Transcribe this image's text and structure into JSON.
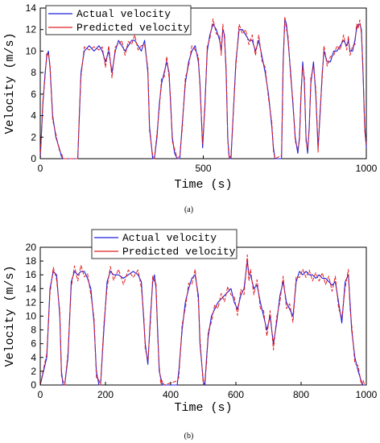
{
  "chart_data": [
    {
      "type": "line",
      "panel_label": "(a)",
      "xlabel": "Time (s)",
      "ylabel": "Velocity (m/s)",
      "xlim": [
        0,
        1000
      ],
      "ylim": [
        0,
        14
      ],
      "xticks": [
        "0",
        "500",
        "1000"
      ],
      "yticks": [
        "0",
        "2",
        "4",
        "6",
        "8",
        "10",
        "12",
        "14"
      ],
      "legend_position": "top-left",
      "series": [
        {
          "name": "Actual velocity",
          "color": "#1f1fe0",
          "x": [
            0,
            8,
            15,
            20,
            25,
            30,
            38,
            48,
            58,
            65,
            70,
            115,
            120,
            125,
            135,
            150,
            165,
            180,
            190,
            200,
            210,
            220,
            230,
            240,
            250,
            260,
            270,
            280,
            290,
            300,
            310,
            320,
            330,
            335,
            345,
            350,
            358,
            365,
            372,
            380,
            388,
            395,
            400,
            405,
            412,
            420,
            428,
            435,
            445,
            455,
            465,
            475,
            485,
            490,
            498,
            505,
            512,
            520,
            530,
            540,
            550,
            555,
            560,
            565,
            570,
            575,
            578,
            580,
            585,
            600,
            610,
            620,
            630,
            640,
            650,
            660,
            670,
            680,
            690,
            700,
            710,
            715,
            720,
            740,
            745,
            750,
            755,
            760,
            768,
            775,
            782,
            790,
            795,
            800,
            805,
            810,
            815,
            820,
            825,
            830,
            838,
            845,
            852,
            858,
            865,
            870,
            880,
            890,
            900,
            910,
            920,
            930,
            940,
            945,
            950,
            958,
            965,
            970,
            975,
            980,
            985,
            990,
            995,
            1000
          ],
          "y": [
            0,
            5,
            8,
            9.5,
            10,
            8.5,
            4,
            2,
            1,
            0.2,
            0,
            0,
            4,
            8,
            10,
            10.5,
            10,
            10.5,
            10,
            9,
            10,
            8,
            10,
            11,
            10.5,
            10,
            10.5,
            11,
            11,
            10.5,
            10,
            11,
            8,
            3,
            0,
            0,
            2,
            5,
            7,
            8,
            9,
            8,
            5,
            2,
            0.5,
            0,
            0,
            3,
            7,
            9,
            10,
            10.5,
            9,
            7,
            1,
            5,
            10,
            11.5,
            12.5,
            12,
            11,
            10,
            12,
            11.5,
            8,
            2,
            0.5,
            0,
            0,
            9,
            12,
            12,
            11.5,
            11,
            11,
            10,
            11,
            9.5,
            8,
            6,
            3,
            1,
            0,
            0,
            9,
            13,
            12.5,
            11,
            8,
            5,
            2,
            0.5,
            2,
            6,
            9,
            7,
            2,
            0.5,
            3,
            7,
            9,
            6,
            1,
            4,
            8,
            10,
            9,
            9,
            10,
            10,
            10.5,
            11,
            10.5,
            11,
            10,
            10,
            11,
            12,
            12.5,
            12.5,
            12,
            8,
            3,
            1
          ]
        },
        {
          "name": "Predicted velocity",
          "color": "#e02020",
          "x": [
            0,
            8,
            15,
            20,
            25,
            30,
            38,
            48,
            58,
            65,
            70,
            115,
            120,
            125,
            135,
            150,
            165,
            180,
            190,
            200,
            210,
            220,
            230,
            240,
            250,
            260,
            270,
            280,
            290,
            300,
            310,
            320,
            330,
            335,
            345,
            350,
            358,
            365,
            372,
            380,
            388,
            395,
            400,
            405,
            412,
            420,
            428,
            435,
            445,
            455,
            465,
            475,
            485,
            490,
            498,
            505,
            512,
            520,
            530,
            540,
            550,
            555,
            560,
            565,
            570,
            575,
            578,
            580,
            585,
            600,
            610,
            620,
            630,
            640,
            650,
            660,
            670,
            680,
            690,
            700,
            710,
            715,
            720,
            740,
            745,
            750,
            755,
            760,
            768,
            775,
            782,
            790,
            795,
            800,
            805,
            810,
            815,
            820,
            825,
            830,
            838,
            845,
            852,
            858,
            865,
            870,
            880,
            890,
            900,
            910,
            920,
            930,
            940,
            945,
            950,
            958,
            965,
            970,
            975,
            980,
            985,
            990,
            995,
            1000
          ],
          "y": [
            0,
            5.3,
            7.7,
            9.8,
            9.7,
            8.8,
            3.6,
            2.3,
            0.8,
            0.5,
            0,
            0,
            4.4,
            7.6,
            10.4,
            10.1,
            10.4,
            10.1,
            10.4,
            8.5,
            10.5,
            7.5,
            10.4,
            10.6,
            11,
            9.6,
            10.9,
            10.6,
            11.5,
            10.1,
            10.5,
            10.6,
            8.4,
            2.6,
            0.3,
            0,
            2.4,
            4.6,
            7.5,
            7.6,
            9.5,
            7.5,
            5.4,
            1.6,
            0.9,
            0,
            0.3,
            2.6,
            7.5,
            8.6,
            10.5,
            10.1,
            9.5,
            6.6,
            1.4,
            4.6,
            10.5,
            11.1,
            13,
            11.6,
            11.5,
            9.6,
            12.5,
            11.1,
            8.5,
            1.6,
            0.9,
            0,
            0.3,
            8.6,
            12.5,
            11.6,
            12,
            10.6,
            11.5,
            9.6,
            11.5,
            9.1,
            8.5,
            5.6,
            3.4,
            0.7,
            0,
            0.3,
            8.6,
            13.2,
            12,
            11.4,
            7.6,
            5.4,
            1.6,
            0.9,
            1.6,
            6.5,
            8.6,
            7.5,
            1.6,
            0.9,
            2.6,
            7.5,
            8.6,
            6.5,
            0.6,
            4.5,
            7.6,
            10.5,
            8.6,
            9.5,
            9.6,
            10.5,
            10.1,
            11.5,
            10.1,
            11.4,
            9.6,
            10.5,
            10.6,
            12.5,
            12.1,
            12.9,
            11.6,
            8.4,
            2.6,
            1.3
          ]
        }
      ]
    },
    {
      "type": "line",
      "panel_label": "(b)",
      "xlabel": "Time (s)",
      "ylabel": "Velocity (m/s)",
      "xlim": [
        0,
        1000
      ],
      "ylim": [
        0,
        20
      ],
      "xticks": [
        "0",
        "200",
        "400",
        "600",
        "800",
        "1000"
      ],
      "yticks": [
        "0",
        "2",
        "4",
        "6",
        "8",
        "10",
        "12",
        "14",
        "16",
        "18",
        "20"
      ],
      "legend_position": "top-center",
      "series": [
        {
          "name": "Actual velocity",
          "color": "#1f1fe0",
          "x": [
            0,
            20,
            30,
            40,
            50,
            60,
            65,
            70,
            75,
            85,
            95,
            105,
            115,
            125,
            135,
            145,
            155,
            165,
            172,
            180,
            185,
            195,
            205,
            215,
            225,
            240,
            255,
            270,
            285,
            300,
            310,
            318,
            322,
            330,
            338,
            345,
            350,
            355,
            360,
            365,
            370,
            375,
            380,
            420,
            425,
            435,
            445,
            455,
            465,
            475,
            485,
            490,
            500,
            505,
            510,
            515,
            525,
            535,
            545,
            555,
            565,
            575,
            585,
            595,
            605,
            615,
            625,
            635,
            640,
            645,
            655,
            665,
            675,
            685,
            695,
            705,
            715,
            725,
            735,
            745,
            755,
            765,
            775,
            785,
            795,
            805,
            815,
            825,
            835,
            845,
            855,
            865,
            875,
            885,
            895,
            905,
            915,
            925,
            935,
            945,
            950,
            955,
            965,
            975,
            985,
            990,
            995
          ],
          "y": [
            0,
            4,
            14,
            16.5,
            16,
            10,
            2,
            0,
            0,
            4,
            15,
            16.5,
            16,
            16.5,
            16.5,
            15.5,
            14,
            9,
            2,
            0,
            0,
            8,
            15,
            16.5,
            16,
            16,
            15.5,
            16,
            16.5,
            16,
            15,
            9,
            6,
            3,
            10,
            15,
            16,
            14,
            8,
            2,
            1,
            0,
            0,
            0,
            2,
            8,
            12,
            14,
            15.5,
            16,
            13,
            6,
            0.5,
            0,
            4,
            7,
            10,
            11,
            12,
            12.5,
            13,
            13.5,
            14,
            12,
            11,
            13,
            14,
            18,
            16,
            16,
            14,
            14.5,
            12,
            10,
            8,
            10,
            6,
            9,
            13,
            15,
            12,
            11,
            10,
            15,
            16.5,
            16,
            16.5,
            16,
            16,
            15.5,
            16,
            15.5,
            15.5,
            15,
            14.5,
            15,
            12,
            9,
            15,
            16,
            12,
            8,
            4,
            2,
            0.5,
            0,
            0
          ]
        },
        {
          "name": "Predicted velocity",
          "color": "#e02020",
          "x": [
            0,
            20,
            30,
            40,
            50,
            60,
            65,
            70,
            75,
            85,
            95,
            105,
            115,
            125,
            135,
            145,
            155,
            165,
            172,
            180,
            185,
            195,
            205,
            215,
            225,
            240,
            255,
            270,
            285,
            300,
            310,
            318,
            322,
            330,
            338,
            345,
            350,
            355,
            360,
            365,
            370,
            375,
            380,
            420,
            425,
            435,
            445,
            455,
            465,
            475,
            485,
            490,
            500,
            505,
            510,
            515,
            525,
            535,
            545,
            555,
            565,
            575,
            585,
            595,
            605,
            615,
            625,
            635,
            640,
            645,
            655,
            665,
            675,
            685,
            695,
            705,
            715,
            725,
            735,
            745,
            755,
            765,
            775,
            785,
            795,
            805,
            815,
            825,
            835,
            845,
            855,
            865,
            875,
            885,
            895,
            905,
            915,
            925,
            935,
            945,
            950,
            955,
            965,
            975,
            985,
            990,
            995
          ],
          "y": [
            0,
            4.6,
            13.3,
            17.1,
            15.3,
            10.7,
            1.3,
            0.6,
            0,
            4.7,
            14.2,
            17.3,
            15.1,
            17.4,
            15.7,
            16.2,
            13.1,
            9.8,
            1.1,
            0.7,
            0,
            8.8,
            14.1,
            17.2,
            15.2,
            16.8,
            14.6,
            16.7,
            15.6,
            16.7,
            14.1,
            9.7,
            5.2,
            3.6,
            9.1,
            15.8,
            15.1,
            14.7,
            7.1,
            2.7,
            0.1,
            0.6,
            0,
            0.6,
            1.1,
            8.8,
            11.1,
            14.8,
            14.6,
            16.8,
            12.1,
            6.8,
            0,
            0.7,
            3.1,
            7.8,
            9.1,
            11.7,
            11.1,
            13.3,
            12.1,
            14.3,
            13.1,
            12.8,
            10.1,
            13.9,
            13.1,
            18.9,
            15.1,
            16.8,
            13.1,
            15.3,
            11.1,
            10.8,
            7.1,
            10.8,
            5.1,
            9.8,
            12.1,
            15.8,
            11.1,
            11.8,
            9.1,
            15.8,
            15.6,
            16.8,
            15.6,
            16.7,
            15.1,
            16.3,
            15.1,
            16.3,
            14.6,
            15.8,
            13.6,
            15.8,
            11.1,
            9.8,
            14.1,
            16.8,
            11.1,
            8.8,
            3.1,
            2.8,
            0,
            0.7,
            0
          ]
        }
      ]
    }
  ]
}
